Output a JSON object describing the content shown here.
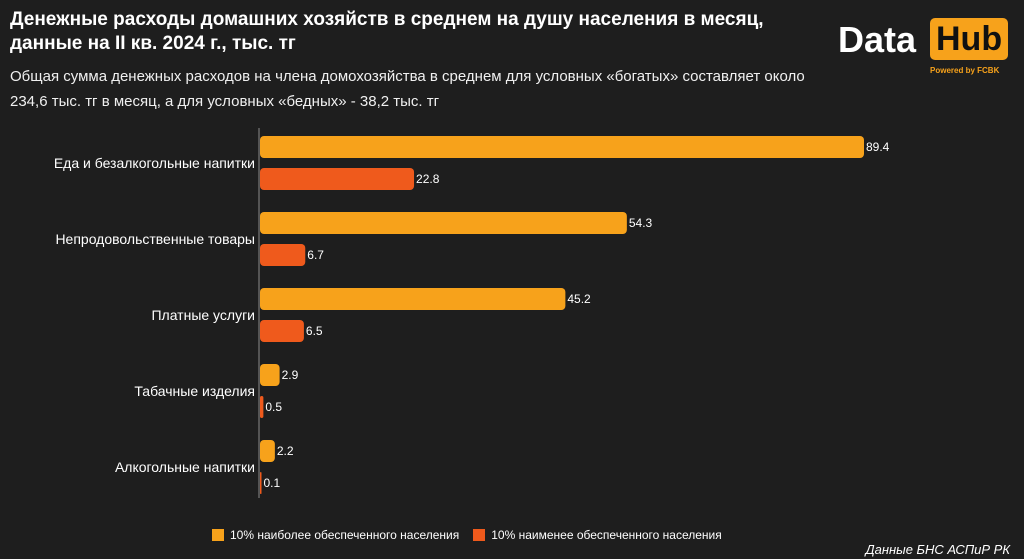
{
  "title": "Денежные расходы домашних хозяйств в среднем на душу населения в месяц, данные на II кв. 2024 г., тыс. тг",
  "subtitle": "Общая сумма денежных расходов на члена домохозяйства в среднем для условных «богатых» составляет около 234,6 тыс. тг в месяц, а для условных «бедных» - 38,2 тыс. тг",
  "logo": {
    "data": "Data",
    "hub": "Hub",
    "powered": "Powered by FCBK"
  },
  "source": "Данные БНС АСПиР РК",
  "colors": {
    "rich": "#f7a21b",
    "poor": "#ef5a1c",
    "background": "#1e1e1e"
  },
  "chart_data": {
    "type": "bar",
    "orientation": "horizontal",
    "categories": [
      "Еда и безалкогольные напитки",
      "Непродовольственные товары",
      "Платные услуги",
      "Табачные изделия",
      "Алкогольные напитки"
    ],
    "series": [
      {
        "name": "10% наиболее обеспеченного населения",
        "values": [
          89.4,
          54.3,
          45.2,
          2.9,
          2.2
        ],
        "labels": [
          "89.4",
          "54.3",
          "45.2",
          "2.9",
          "2.2"
        ]
      },
      {
        "name": "10% наименее обеспеченного населения",
        "values": [
          22.8,
          6.7,
          6.5,
          0.5,
          0.1
        ],
        "labels": [
          "22.8",
          "6.7",
          "6.5",
          "0.5",
          "0.1"
        ]
      }
    ],
    "xlim": [
      0,
      89.4
    ],
    "legend": "bottom",
    "grid": false
  }
}
